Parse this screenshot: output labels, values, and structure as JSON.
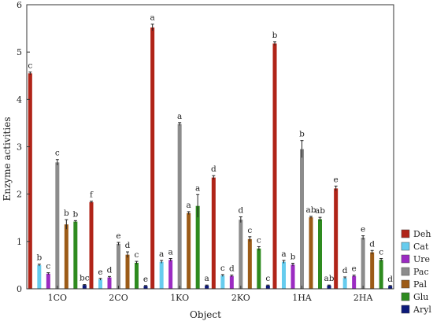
{
  "chart_data": {
    "type": "bar",
    "title": "",
    "xlabel": "Object",
    "ylabel": "Enzyme activities",
    "ylim": [
      0,
      6
    ],
    "yticks": [
      0,
      1,
      2,
      3,
      4,
      5,
      6
    ],
    "grid": false,
    "legend_position": "bottom-right",
    "categories": [
      "1CO",
      "2CO",
      "1KO",
      "2KO",
      "1HA",
      "2HA"
    ],
    "series": [
      {
        "name": "Deh",
        "color": "#b02418",
        "values": [
          4.55,
          1.83,
          5.52,
          2.35,
          5.18,
          2.12
        ],
        "errors": [
          0.03,
          0.02,
          0.07,
          0.04,
          0.04,
          0.05
        ],
        "letters": [
          "c",
          "f",
          "a",
          "d",
          "b",
          "e"
        ]
      },
      {
        "name": "Cat",
        "color": "#66ccee",
        "values": [
          0.5,
          0.2,
          0.57,
          0.28,
          0.57,
          0.23
        ],
        "errors": [
          0.02,
          0.02,
          0.03,
          0.02,
          0.03,
          0.02
        ],
        "letters": [
          "b",
          "e",
          "a",
          "c",
          "a",
          "d"
        ]
      },
      {
        "name": "Ure",
        "color": "#9b2bc2",
        "values": [
          0.32,
          0.24,
          0.61,
          0.27,
          0.51,
          0.27
        ],
        "errors": [
          0.02,
          0.02,
          0.03,
          0.02,
          0.03,
          0.02
        ],
        "letters": [
          "c",
          "d",
          "a",
          "d",
          "b",
          "e"
        ]
      },
      {
        "name": "Pac",
        "color": "#8c8c8c",
        "values": [
          2.67,
          0.95,
          3.48,
          1.46,
          2.95,
          1.08
        ],
        "errors": [
          0.06,
          0.03,
          0.03,
          0.06,
          0.18,
          0.04
        ],
        "letters": [
          "c",
          "e",
          "a",
          "d",
          "b",
          "e"
        ]
      },
      {
        "name": "Pal",
        "color": "#9c5b17",
        "values": [
          1.36,
          0.72,
          1.6,
          1.05,
          1.51,
          0.77
        ],
        "errors": [
          0.1,
          0.06,
          0.03,
          0.05,
          0.02,
          0.04
        ],
        "letters": [
          "b",
          "d",
          "a",
          "c",
          "ab",
          "d"
        ]
      },
      {
        "name": "Glu",
        "color": "#2e8b1f",
        "values": [
          1.42,
          0.55,
          1.75,
          0.85,
          1.47,
          0.61
        ],
        "errors": [
          0.02,
          0.03,
          0.24,
          0.04,
          0.04,
          0.03
        ],
        "letters": [
          "b",
          "c",
          "a",
          "c",
          "ab",
          "c"
        ]
      },
      {
        "name": "Aryl",
        "color": "#0d1a7a",
        "values": [
          0.08,
          0.06,
          0.07,
          0.07,
          0.07,
          0.06
        ],
        "errors": [
          0.01,
          0.01,
          0.01,
          0.01,
          0.01,
          0.01
        ],
        "letters": [
          "bc",
          "e",
          "a",
          "c",
          "ab",
          "d"
        ]
      }
    ]
  }
}
